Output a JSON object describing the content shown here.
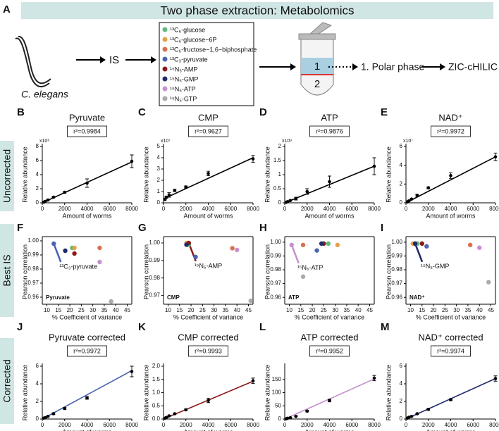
{
  "header": {
    "panel": "A",
    "title": "Two phase extraction: Metabolomics"
  },
  "diagram": {
    "organism": "C. elegans",
    "is_label": "IS",
    "standards": [
      {
        "name": "¹³C₆-glucose",
        "color": "#5dbb78"
      },
      {
        "name": "¹³C₆-glucose−6P",
        "color": "#e8a045"
      },
      {
        "name": "¹³C₆-fructose−1,6−biphosphate",
        "color": "#d9704f"
      },
      {
        "name": "¹³C₃-pyruvate",
        "color": "#4a64b0"
      },
      {
        "name": "¹⁵N₅-AMP",
        "color": "#8b1a1a"
      },
      {
        "name": "¹⁵N₅-GMP",
        "color": "#1f2a6b"
      },
      {
        "name": "¹⁵N₅-ATP",
        "color": "#c68fd0"
      },
      {
        "name": "¹⁵N₅-GTP",
        "color": "#aaaaaa"
      }
    ],
    "phase_top": "1",
    "phase_bottom": "2",
    "step": "1. Polar phase",
    "method": "ZIC-cHILIC"
  },
  "row_labels": [
    "Uncorrected",
    "Best IS",
    "Corrected"
  ],
  "chart_data": [
    {
      "type": "line",
      "panel": "B",
      "title": "Pyruvate",
      "multiplier": "x10⁸",
      "r2": "r²=0.9984",
      "xlabel": "Amount of worms",
      "ylabel": "Relative abundance",
      "x": [
        125,
        250,
        500,
        1000,
        2000,
        4000,
        8000
      ],
      "values": [
        0.1,
        0.2,
        0.4,
        0.8,
        1.5,
        2.8,
        5.9
      ],
      "errors": [
        0.05,
        0.05,
        0.05,
        0.1,
        0.1,
        0.6,
        0.9
      ],
      "fit_x": [
        0,
        8000
      ],
      "fit_y": [
        0,
        5.8
      ],
      "fit_color": "#000000",
      "xlim": [
        0,
        8000
      ],
      "xticks": [
        0,
        2000,
        4000,
        6000,
        8000
      ],
      "ylim": [
        0,
        8
      ],
      "yticks": [
        0,
        2,
        4,
        6,
        8
      ]
    },
    {
      "type": "line",
      "panel": "C",
      "title": "CMP",
      "multiplier": "x10⁷",
      "r2": "r²=0.9627",
      "xlabel": "Amount of worms",
      "ylabel": "Relative abundance",
      "x": [
        125,
        250,
        500,
        1000,
        2000,
        4000,
        8000
      ],
      "values": [
        0.3,
        0.5,
        0.7,
        1.1,
        1.4,
        2.6,
        3.9
      ],
      "errors": [
        0.05,
        0.1,
        0.2,
        0.1,
        0.1,
        0.2,
        0.3
      ],
      "fit_x": [
        0,
        8000
      ],
      "fit_y": [
        0.35,
        4.0
      ],
      "fit_color": "#000000",
      "xlim": [
        0,
        8000
      ],
      "xticks": [
        0,
        2000,
        4000,
        6000,
        8000
      ],
      "ylim": [
        0,
        5
      ],
      "yticks": [
        0,
        1,
        2,
        3,
        4,
        5
      ]
    },
    {
      "type": "line",
      "panel": "D",
      "title": "ATP",
      "multiplier": "x10⁹",
      "r2": "r²=0.9876",
      "xlabel": "Amount of worms",
      "ylabel": "Relative abundance",
      "x": [
        125,
        250,
        500,
        1000,
        2000,
        4000,
        8000
      ],
      "values": [
        0.02,
        0.04,
        0.08,
        0.15,
        0.4,
        0.75,
        1.3
      ],
      "errors": [
        0.01,
        0.01,
        0.02,
        0.05,
        0.1,
        0.2,
        0.3
      ],
      "fit_x": [
        0,
        8000
      ],
      "fit_y": [
        0,
        1.3
      ],
      "fit_color": "#000000",
      "xlim": [
        0,
        8000
      ],
      "xticks": [
        0,
        2000,
        4000,
        6000,
        8000
      ],
      "ylim": [
        0,
        2
      ],
      "yticks": [
        0,
        0.5,
        1,
        1.5,
        2
      ]
    },
    {
      "type": "line",
      "panel": "E",
      "title": "NAD⁺",
      "multiplier": "x10⁷",
      "r2": "r²=0.9972",
      "xlabel": "Amount of worms",
      "ylabel": "Relative abundance",
      "x": [
        125,
        250,
        500,
        1000,
        2000,
        4000,
        8000
      ],
      "values": [
        0.1,
        0.2,
        0.4,
        0.8,
        1.6,
        2.9,
        4.9
      ],
      "errors": [
        0.05,
        0.05,
        0.05,
        0.1,
        0.1,
        0.3,
        0.4
      ],
      "fit_x": [
        0,
        8000
      ],
      "fit_y": [
        0,
        4.9
      ],
      "fit_color": "#000000",
      "xlim": [
        0,
        8000
      ],
      "xticks": [
        0,
        2000,
        4000,
        6000,
        8000
      ],
      "ylim": [
        0,
        6
      ],
      "yticks": [
        0,
        2,
        4,
        6
      ]
    },
    {
      "type": "scatter",
      "panel": "F",
      "label": "Pyruvate",
      "annotation": "¹³C₃-pyruvate",
      "annotation_color": "#4a64b0",
      "xlabel": "% Coefficient of variance",
      "ylabel": "Pearson correlation",
      "x": [
        21,
        22,
        33,
        13,
        22,
        18,
        33,
        38
      ],
      "values": [
        0.995,
        0.995,
        0.995,
        0.998,
        0.991,
        0.993,
        0.985,
        0.957
      ],
      "colors": [
        "#5dbb78",
        "#e8a045",
        "#d9704f",
        "#4a64b0",
        "#8b1a1a",
        "#1f2a6b",
        "#c68fd0",
        "#aaaaaa"
      ],
      "xlim": [
        8,
        47
      ],
      "xticks": [
        10,
        15,
        20,
        25,
        30,
        35,
        40,
        45
      ],
      "ylim": [
        0.955,
        1.001
      ],
      "yticks": [
        0.96,
        0.97,
        0.98,
        0.99,
        {
          "value": 1,
          "label": "1.00"
        }
      ]
    },
    {
      "type": "scatter",
      "panel": "G",
      "label": "CMP",
      "annotation": "¹⁵N₅-AMP",
      "annotation_color": "#8b1a1a",
      "xlabel": "% Coefficient of variance",
      "ylabel": "Pearson correlation",
      "x": [
        19,
        18,
        38,
        22,
        19,
        18,
        40,
        46
      ],
      "values": [
        0.999,
        1,
        0.997,
        0.992,
        1,
        0.999,
        0.996,
        0.967
      ],
      "colors": [
        "#5dbb78",
        "#e8a045",
        "#d9704f",
        "#4a64b0",
        "#8b1a1a",
        "#1f2a6b",
        "#c68fd0",
        "#aaaaaa"
      ],
      "xlim": [
        8,
        47
      ],
      "xticks": [
        10,
        15,
        20,
        25,
        30,
        35,
        40,
        45
      ],
      "ylim": [
        0.965,
        1.002
      ],
      "yticks": [
        0.97,
        0.98,
        0.99,
        {
          "value": 1,
          "label": "1.00"
        }
      ]
    },
    {
      "type": "scatter",
      "panel": "H",
      "label": "ATP",
      "annotation": "¹⁵N₅-ATP",
      "annotation_color": "#c68fd0",
      "xlabel": "% Coefficient of variance",
      "ylabel": "Pearson correlation",
      "x": [
        27,
        31,
        16,
        22,
        25,
        24,
        11,
        16
      ],
      "values": [
        0.999,
        0.998,
        0.998,
        0.994,
        0.999,
        0.999,
        0.998,
        0.975
      ],
      "colors": [
        "#5dbb78",
        "#e8a045",
        "#d9704f",
        "#4a64b0",
        "#8b1a1a",
        "#1f2a6b",
        "#c68fd0",
        "#aaaaaa"
      ],
      "xlim": [
        8,
        47
      ],
      "xticks": [
        10,
        15,
        20,
        25,
        30,
        35,
        40,
        45
      ],
      "ylim": [
        0.955,
        1.002
      ],
      "yticks": [
        0.96,
        0.97,
        0.98,
        0.99,
        {
          "value": 1,
          "label": "1.00"
        }
      ]
    },
    {
      "type": "scatter",
      "panel": "I",
      "label": "NAD⁺",
      "annotation": "¹⁵N₅-GMP",
      "annotation_color": "#1f2a6b",
      "xlabel": "% Coefficient of variance",
      "ylabel": "Pearson correlation",
      "x": [
        13,
        11,
        36,
        17,
        15,
        12,
        40,
        44
      ],
      "values": [
        0.999,
        0.999,
        0.998,
        0.997,
        0.999,
        0.999,
        0.996,
        0.971
      ],
      "colors": [
        "#5dbb78",
        "#e8a045",
        "#d9704f",
        "#4a64b0",
        "#8b1a1a",
        "#1f2a6b",
        "#c68fd0",
        "#aaaaaa"
      ],
      "xlim": [
        8,
        47
      ],
      "xticks": [
        10,
        15,
        20,
        25,
        30,
        35,
        40,
        45
      ],
      "ylim": [
        0.955,
        1.002
      ],
      "yticks": [
        0.96,
        0.97,
        0.98,
        0.99,
        {
          "value": 1,
          "label": "1.00"
        }
      ]
    },
    {
      "type": "line",
      "panel": "J",
      "title": "Pyruvate corrected",
      "r2": "r²=0.9972",
      "xlabel": "Amount of worms",
      "ylabel": "Relative abundance",
      "x": [
        125,
        250,
        500,
        1000,
        2000,
        4000,
        8000
      ],
      "values": [
        0.1,
        0.15,
        0.3,
        0.6,
        1.2,
        2.4,
        5.4
      ],
      "errors": [
        0.05,
        0.05,
        0.05,
        0.1,
        0.1,
        0.15,
        0.6
      ],
      "fit_x": [
        0,
        8000
      ],
      "fit_y": [
        0,
        5.5
      ],
      "fit_color": "#4a64b0",
      "xlim": [
        0,
        8000
      ],
      "xticks": [
        0,
        2000,
        4000,
        6000,
        8000
      ],
      "ylim": [
        0,
        6
      ],
      "yticks": [
        0,
        2,
        4,
        6
      ]
    },
    {
      "type": "line",
      "panel": "K",
      "title": "CMP corrected",
      "r2": "r²=0.9993",
      "xlabel": "Amount of worms",
      "ylabel": "Relative abundance",
      "x": [
        125,
        250,
        500,
        1000,
        2000,
        4000,
        8000
      ],
      "values": [
        0.03,
        0.06,
        0.12,
        0.2,
        0.35,
        0.7,
        1.45
      ],
      "errors": [
        0.01,
        0.01,
        0.02,
        0.02,
        0.03,
        0.08,
        0.1
      ],
      "fit_x": [
        0,
        8000
      ],
      "fit_y": [
        0,
        1.43
      ],
      "fit_color": "#8b1a1a",
      "xlim": [
        0,
        8000
      ],
      "xticks": [
        0,
        2000,
        4000,
        6000,
        8000
      ],
      "ylim": [
        0,
        2
      ],
      "yticks": [
        {
          "value": 0,
          "label": "0.0"
        },
        0.5,
        {
          "value": 1,
          "label": "1.0"
        },
        1.5,
        {
          "value": 2,
          "label": "2.0"
        }
      ]
    },
    {
      "type": "line",
      "panel": "L",
      "title": "ATP corrected",
      "r2": "r²=0.9952",
      "xlabel": "Amount of worms",
      "ylabel": "Relative abundance",
      "x": [
        125,
        250,
        500,
        1000,
        2000,
        4000,
        8000
      ],
      "values": [
        1,
        3,
        5,
        10,
        30,
        70,
        155
      ],
      "errors": [
        0.5,
        0.5,
        1,
        2,
        3,
        5,
        10
      ],
      "fit_x": [
        0,
        8000
      ],
      "fit_y": [
        0,
        152
      ],
      "fit_color": "#c68fd0",
      "xlim": [
        0,
        8000
      ],
      "xticks": [
        0,
        2000,
        4000,
        6000,
        8000
      ],
      "ylim": [
        0,
        200
      ],
      "yticks": [
        0,
        50,
        100,
        150
      ]
    },
    {
      "type": "line",
      "panel": "M",
      "title": "NAD⁺ corrected",
      "r2": "r²=0.9974",
      "xlabel": "Amount of worms",
      "ylabel": "Relative abundance",
      "x": [
        125,
        250,
        500,
        1000,
        2000,
        4000,
        8000
      ],
      "values": [
        0.1,
        0.2,
        0.3,
        0.6,
        1.1,
        2.2,
        4.6
      ],
      "errors": [
        0.05,
        0.05,
        0.05,
        0.05,
        0.1,
        0.1,
        0.3
      ],
      "fit_x": [
        0,
        8000
      ],
      "fit_y": [
        0,
        4.6
      ],
      "fit_color": "#1f2a6b",
      "xlim": [
        0,
        8000
      ],
      "xticks": [
        0,
        2000,
        4000,
        6000,
        8000
      ],
      "ylim": [
        0,
        6
      ],
      "yticks": [
        0,
        2,
        4,
        6
      ]
    }
  ]
}
